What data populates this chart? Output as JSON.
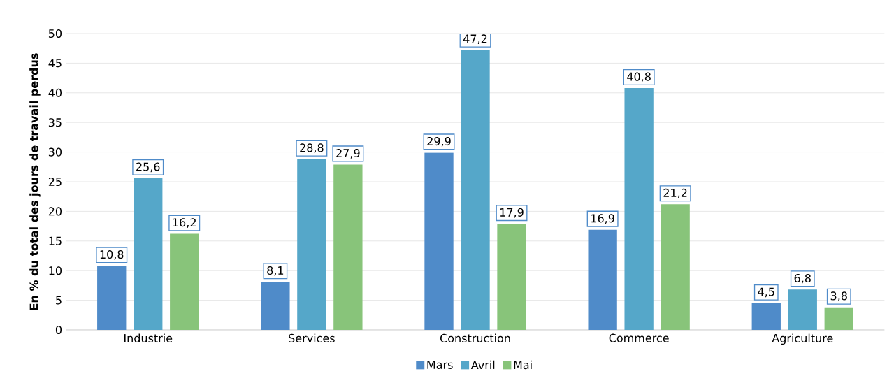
{
  "chart_data": {
    "type": "bar",
    "categories": [
      "Industrie",
      "Services",
      "Construction",
      "Commerce",
      "Agriculture"
    ],
    "ylabel": "En % du total des jours de travail perdus",
    "series": [
      {
        "name": "Mars",
        "color": "#4f8bc9",
        "values": [
          10.8,
          8.1,
          29.9,
          16.9,
          4.5
        ],
        "value_labels": [
          "10,8",
          "8,1",
          "29,9",
          "16,9",
          "4,5"
        ]
      },
      {
        "name": "Avril",
        "color": "#55a7c9",
        "values": [
          25.6,
          28.8,
          47.2,
          40.8,
          6.8
        ],
        "value_labels": [
          "25,6",
          "28,8",
          "47,2",
          "40,8",
          "6,8"
        ]
      },
      {
        "name": "Mai",
        "color": "#88c47a",
        "values": [
          16.2,
          27.9,
          17.9,
          21.2,
          3.8
        ],
        "value_labels": [
          "16,2",
          "27,9",
          "17,9",
          "21,2",
          "3,8"
        ]
      }
    ],
    "ylim": [
      0,
      50
    ],
    "yticks": [
      0,
      5,
      10,
      15,
      20,
      25,
      30,
      35,
      40,
      45,
      50
    ],
    "grid": "y",
    "legend": "bottom"
  }
}
